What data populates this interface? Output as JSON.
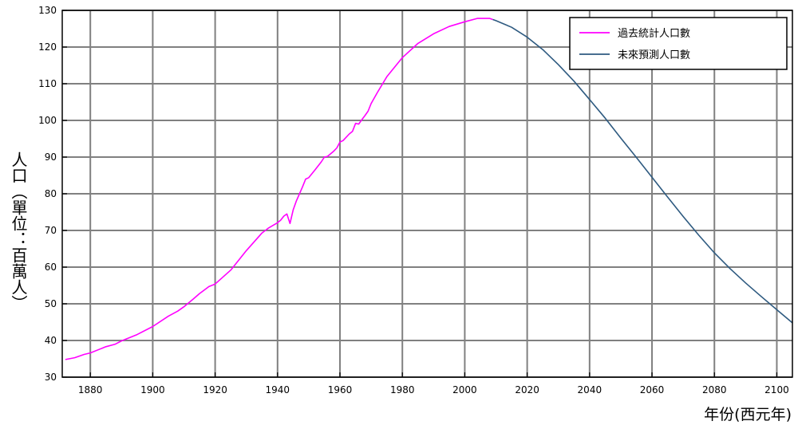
{
  "chart_data": {
    "type": "line",
    "title": "",
    "xlabel": "年份(西元年)",
    "ylabel": "人口（單位：百萬人）",
    "xlim": [
      1871,
      2105
    ],
    "ylim": [
      30,
      130
    ],
    "grid": true,
    "legend_position": "top-right",
    "x_ticks": [
      1880,
      1900,
      1920,
      1940,
      1960,
      1980,
      2000,
      2020,
      2040,
      2060,
      2080,
      2100
    ],
    "y_ticks": [
      30,
      40,
      50,
      60,
      70,
      80,
      90,
      100,
      110,
      120,
      130
    ],
    "series": [
      {
        "name": "過去統計人口數",
        "color": "#ff00ff",
        "points": [
          [
            1872,
            34.8
          ],
          [
            1875,
            35.3
          ],
          [
            1878,
            36.2
          ],
          [
            1880,
            36.6
          ],
          [
            1885,
            38.3
          ],
          [
            1888,
            39.0
          ],
          [
            1890,
            39.9
          ],
          [
            1895,
            41.6
          ],
          [
            1900,
            43.8
          ],
          [
            1905,
            46.6
          ],
          [
            1908,
            48.0
          ],
          [
            1910,
            49.2
          ],
          [
            1913,
            51.3
          ],
          [
            1915,
            52.8
          ],
          [
            1918,
            54.7
          ],
          [
            1920,
            55.4
          ],
          [
            1925,
            59.2
          ],
          [
            1930,
            64.5
          ],
          [
            1935,
            69.3
          ],
          [
            1937,
            70.6
          ],
          [
            1940,
            72.1
          ],
          [
            1941,
            72.8
          ],
          [
            1942,
            73.9
          ],
          [
            1943,
            74.5
          ],
          [
            1944,
            71.9
          ],
          [
            1945,
            75.6
          ],
          [
            1946,
            78.0
          ],
          [
            1948,
            81.9
          ],
          [
            1949,
            84.0
          ],
          [
            1950,
            84.4
          ],
          [
            1952,
            86.5
          ],
          [
            1954,
            88.7
          ],
          [
            1955,
            90.0
          ],
          [
            1956,
            90.2
          ],
          [
            1958,
            91.6
          ],
          [
            1959,
            92.5
          ],
          [
            1960,
            94.1
          ],
          [
            1961,
            94.5
          ],
          [
            1963,
            96.3
          ],
          [
            1964,
            97.0
          ],
          [
            1965,
            99.2
          ],
          [
            1966,
            99.0
          ],
          [
            1967,
            100.2
          ],
          [
            1968,
            101.3
          ],
          [
            1969,
            102.5
          ],
          [
            1970,
            104.6
          ],
          [
            1972,
            107.6
          ],
          [
            1975,
            111.9
          ],
          [
            1980,
            117.1
          ],
          [
            1985,
            121.0
          ],
          [
            1990,
            123.6
          ],
          [
            1995,
            125.6
          ],
          [
            2000,
            126.9
          ],
          [
            2004,
            127.8
          ],
          [
            2008,
            127.8
          ],
          [
            2009,
            127.5
          ]
        ]
      },
      {
        "name": "未來預測人口數",
        "color": "#2e5a80",
        "points": [
          [
            2009,
            127.5
          ],
          [
            2010,
            127.2
          ],
          [
            2015,
            125.4
          ],
          [
            2020,
            122.7
          ],
          [
            2025,
            119.3
          ],
          [
            2030,
            115.2
          ],
          [
            2035,
            110.7
          ],
          [
            2040,
            105.7
          ],
          [
            2045,
            100.6
          ],
          [
            2050,
            95.2
          ],
          [
            2055,
            89.9
          ],
          [
            2060,
            84.5
          ],
          [
            2065,
            79.1
          ],
          [
            2070,
            73.8
          ],
          [
            2075,
            68.7
          ],
          [
            2080,
            63.9
          ],
          [
            2085,
            59.6
          ],
          [
            2090,
            55.7
          ],
          [
            2095,
            52.0
          ],
          [
            2100,
            48.4
          ],
          [
            2105,
            44.8
          ]
        ]
      }
    ]
  }
}
